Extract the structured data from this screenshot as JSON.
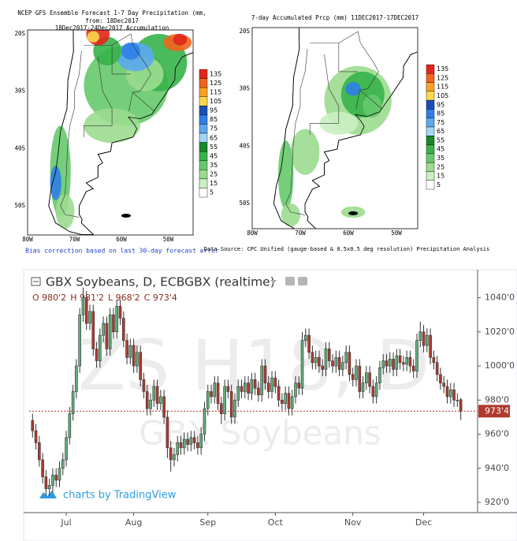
{
  "maps": [
    {
      "title": [
        "NCEP GFS Ensemble Forecast 1-7 Day Precipitation (mm,",
        "from: 18Dec2017",
        "18Dec2017-24Dec2017 Accumulation"
      ],
      "footnote": "Bias correction based on last 30-day forecast error",
      "colorbar": {
        "labels": [
          135,
          125,
          115,
          105,
          95,
          85,
          75,
          65,
          55,
          45,
          35,
          25,
          15,
          5
        ],
        "colors": [
          "#e3261c",
          "#f2651c",
          "#f9a326",
          "#fbd84a",
          "#1a4fb5",
          "#2f7fe6",
          "#5ba8ef",
          "#a3d5f5",
          "#17892b",
          "#37b34a",
          "#66c96b",
          "#9bdc8f",
          "#cbefc2",
          "#ffffff"
        ]
      },
      "lat_labels": [
        "20S",
        "30S",
        "40S",
        "50S"
      ],
      "lon_labels": [
        "80W",
        "70W",
        "60W",
        "50W"
      ]
    },
    {
      "title": [
        "7-day Accumulated Prcp (mm) 11DEC2017-17DEC2017"
      ],
      "footnote": "Data Source: CPC Unified (gauge-based & 0.5x0.5 deg resolution) Precipitation Analysis",
      "colorbar": {
        "labels": [
          135,
          125,
          115,
          105,
          95,
          85,
          75,
          65,
          55,
          45,
          35,
          25,
          15,
          5
        ],
        "colors": [
          "#e3261c",
          "#f2651c",
          "#f9a326",
          "#fbd84a",
          "#1a4fb5",
          "#2f7fe6",
          "#5ba8ef",
          "#a3d5f5",
          "#17892b",
          "#37b34a",
          "#66c96b",
          "#9bdc8f",
          "#cbefc2",
          "#ffffff"
        ]
      },
      "lat_labels": [
        "20S",
        "30S",
        "40S",
        "50S"
      ],
      "lon_labels": [
        "80W",
        "70W",
        "60W",
        "50W"
      ]
    }
  ],
  "chart_data": {
    "type": "candlestick",
    "title": "GBX Soybeans, D, ECBGBX (realtime)",
    "ohlc_header": [
      "O 980'2",
      "H 981'2",
      "L 968'2",
      "C 973'4"
    ],
    "watermark": [
      "ZS H18, D",
      "GBX Soybeans"
    ],
    "branding": "charts by TradingView",
    "up_color": "#5fae7c",
    "down_color": "#b03a2e",
    "open": [
      968,
      962,
      955,
      945,
      935,
      928,
      930,
      936,
      933,
      940,
      945,
      958,
      972,
      985,
      1000,
      1030,
      1040,
      1025,
      1032,
      1010,
      1003,
      1018,
      1025,
      1010,
      1030,
      1020,
      1035,
      1028,
      1015,
      1005,
      1012,
      1000,
      1008,
      992,
      985,
      975,
      980,
      988,
      978,
      982,
      970,
      952,
      945,
      948,
      955,
      952,
      957,
      954,
      958,
      955,
      952,
      960,
      975,
      985,
      982,
      990,
      978,
      972,
      988,
      985,
      970,
      980,
      988,
      985,
      990,
      984,
      992,
      987,
      983,
      1000,
      990,
      985,
      993,
      988,
      980,
      978,
      984,
      975,
      982,
      990,
      987,
      1015,
      1018,
      1008,
      1002,
      1005,
      1000,
      998,
      1010,
      1003,
      1000,
      1005,
      998,
      1002,
      1008,
      995,
      992,
      1000,
      985,
      990,
      996,
      988,
      982,
      990,
      999,
      1003,
      1000,
      1004,
      998,
      1006,
      1002,
      1001,
      1005,
      1000,
      997,
      1015,
      1020,
      1012,
      1018,
      1005,
      1002,
      995,
      990,
      988,
      982,
      986,
      980,
      980.25
    ],
    "high": [
      972,
      966,
      959,
      949,
      939,
      934,
      940,
      940,
      944,
      949,
      962,
      976,
      989,
      1004,
      1034,
      1046,
      1044,
      1036,
      1036,
      1014,
      1022,
      1029,
      1029,
      1034,
      1034,
      1039,
      1039,
      1032,
      1019,
      1016,
      1016,
      1012,
      1012,
      996,
      989,
      984,
      992,
      992,
      986,
      986,
      974,
      956,
      952,
      959,
      959,
      961,
      961,
      962,
      962,
      959,
      964,
      979,
      989,
      989,
      994,
      994,
      982,
      992,
      992,
      989,
      984,
      992,
      992,
      994,
      994,
      996,
      996,
      991,
      1004,
      1004,
      994,
      997,
      997,
      992,
      984,
      988,
      988,
      986,
      994,
      994,
      1020,
      1022,
      1022,
      1012,
      1009,
      1009,
      1004,
      1014,
      1014,
      1007,
      1009,
      1009,
      1006,
      1012,
      1012,
      999,
      1004,
      1004,
      994,
      1000,
      1000,
      992,
      994,
      1003,
      1007,
      1007,
      1008,
      1008,
      1010,
      1010,
      1006,
      1009,
      1009,
      1004,
      1019,
      1026,
      1024,
      1022,
      1022,
      1009,
      1006,
      999,
      994,
      992,
      990,
      990,
      984,
      981.25
    ],
    "low": [
      958,
      951,
      941,
      931,
      924,
      924,
      926,
      929,
      929,
      936,
      941,
      954,
      968,
      981,
      996,
      1026,
      1021,
      1021,
      1006,
      999,
      999,
      1014,
      1006,
      1006,
      1016,
      1016,
      1024,
      1011,
      1001,
      1001,
      996,
      996,
      988,
      981,
      971,
      971,
      976,
      974,
      974,
      966,
      946,
      938,
      941,
      944,
      948,
      948,
      950,
      950,
      951,
      948,
      948,
      956,
      971,
      978,
      978,
      974,
      966,
      968,
      981,
      966,
      966,
      976,
      981,
      981,
      980,
      980,
      983,
      979,
      979,
      986,
      981,
      981,
      984,
      976,
      974,
      974,
      971,
      971,
      978,
      983,
      983,
      1011,
      1004,
      998,
      998,
      996,
      994,
      994,
      999,
      996,
      996,
      994,
      994,
      998,
      991,
      988,
      988,
      981,
      981,
      986,
      984,
      978,
      978,
      986,
      995,
      996,
      996,
      994,
      994,
      998,
      997,
      997,
      996,
      993,
      993,
      1011,
      1008,
      1008,
      1001,
      998,
      991,
      986,
      984,
      978,
      978,
      976,
      976,
      968.25
    ],
    "close": [
      962,
      955,
      945,
      935,
      928,
      930,
      936,
      933,
      940,
      945,
      958,
      972,
      985,
      1000,
      1030,
      1040,
      1025,
      1032,
      1010,
      1003,
      1018,
      1025,
      1010,
      1030,
      1020,
      1035,
      1028,
      1015,
      1005,
      1012,
      1000,
      1008,
      992,
      985,
      975,
      980,
      988,
      978,
      982,
      970,
      952,
      945,
      948,
      955,
      952,
      957,
      954,
      958,
      955,
      952,
      960,
      975,
      985,
      982,
      990,
      978,
      972,
      988,
      985,
      970,
      980,
      988,
      985,
      990,
      984,
      992,
      987,
      983,
      1000,
      990,
      985,
      993,
      988,
      980,
      978,
      984,
      975,
      982,
      990,
      987,
      1015,
      1018,
      1008,
      1002,
      1005,
      1000,
      998,
      1010,
      1003,
      1000,
      1005,
      998,
      1002,
      1008,
      995,
      992,
      1000,
      985,
      990,
      996,
      988,
      982,
      990,
      999,
      1003,
      1000,
      1004,
      998,
      1006,
      1002,
      1001,
      1005,
      1000,
      997,
      1015,
      1020,
      1012,
      1018,
      1005,
      1002,
      995,
      990,
      988,
      982,
      986,
      980,
      980,
      973.5
    ],
    "last_price": {
      "value": 973.5,
      "label": "973'4"
    },
    "xlim": [
      -1,
      132
    ],
    "xticks": [
      {
        "value": 10,
        "label": "Jul"
      },
      {
        "value": 30,
        "label": "Aug"
      },
      {
        "value": 52,
        "label": "Sep"
      },
      {
        "value": 72,
        "label": "Oct"
      },
      {
        "value": 95,
        "label": "Nov"
      },
      {
        "value": 116,
        "label": "Dec"
      }
    ],
    "ylim": [
      914,
      1056
    ],
    "yticks": [
      {
        "value": 920,
        "label": "920'0"
      },
      {
        "value": 940,
        "label": "940'0"
      },
      {
        "value": 960,
        "label": "960'0"
      },
      {
        "value": 980,
        "label": "980'0"
      },
      {
        "value": 1000,
        "label": "1000'0"
      },
      {
        "value": 1020,
        "label": "1020'0"
      },
      {
        "value": 1040,
        "label": "1040'0"
      }
    ],
    "grid": false
  }
}
